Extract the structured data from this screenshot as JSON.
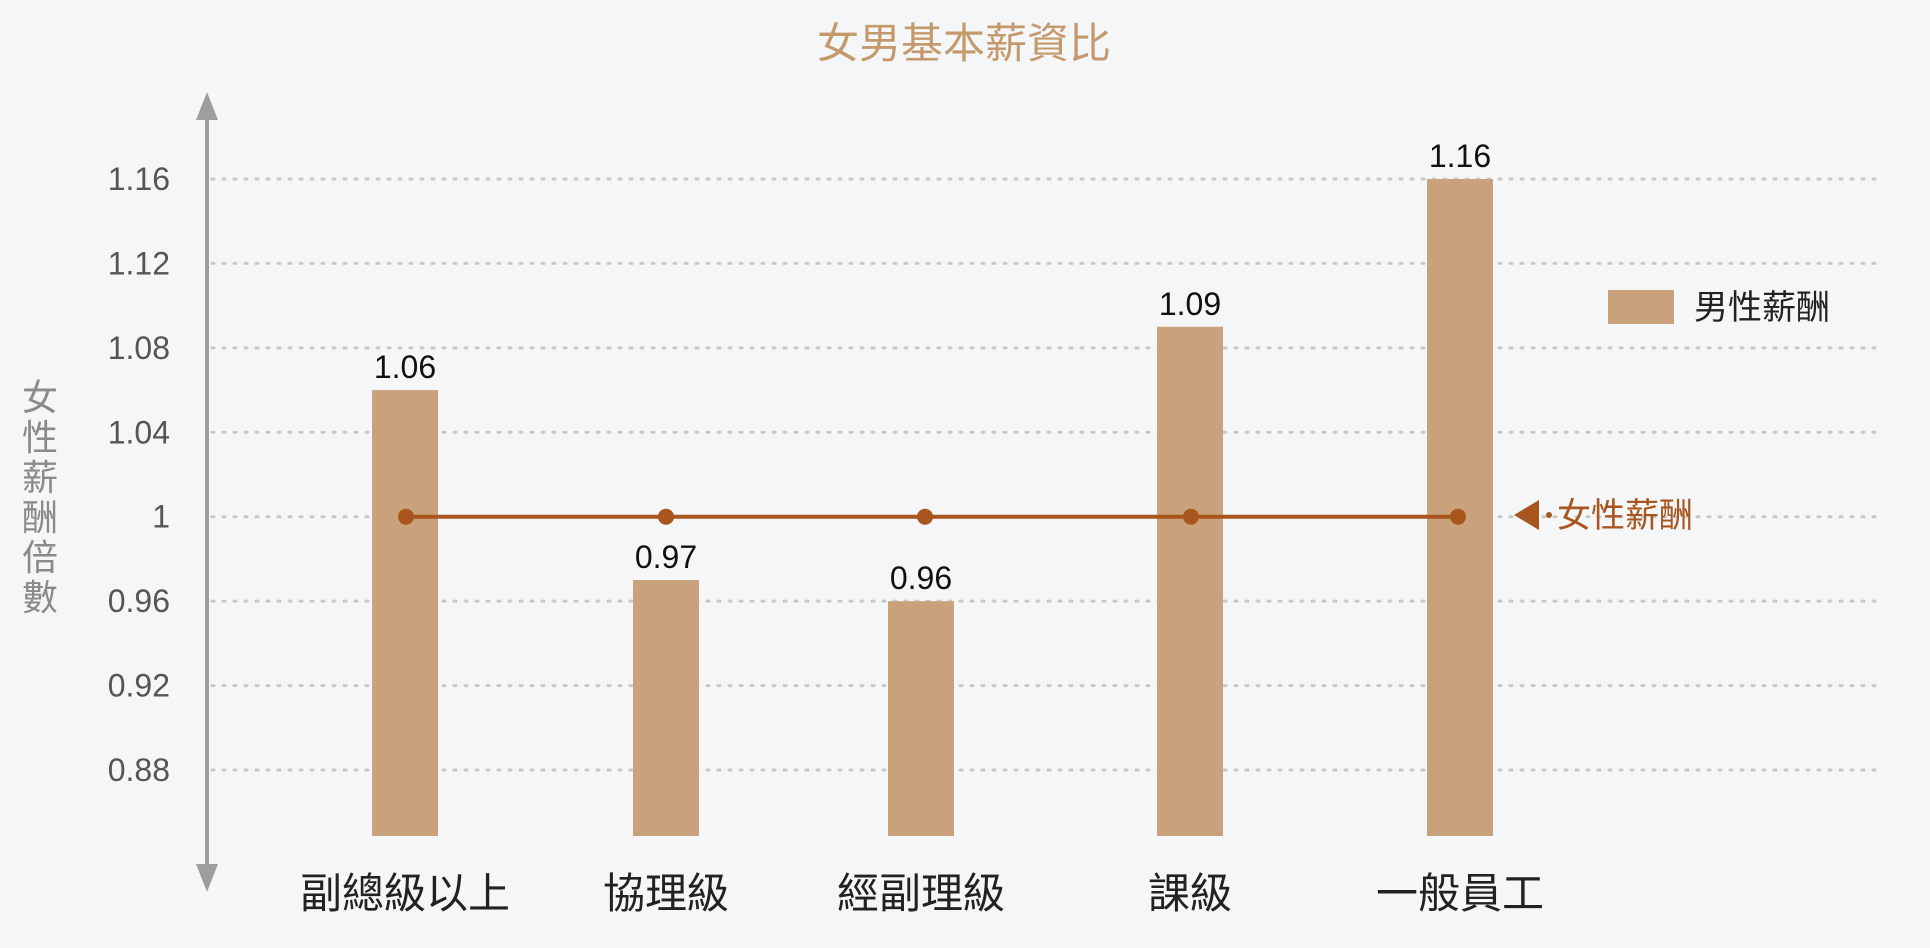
{
  "chart_data": {
    "type": "bar",
    "title": "女男基本薪資比",
    "ylabel": "女性薪酬倍數",
    "xlabel": "",
    "categories": [
      "副總級以上",
      "協理級",
      "經副理級",
      "課級",
      "一般員工"
    ],
    "series": [
      {
        "name": "男性薪酬",
        "type": "bar",
        "values": [
          1.06,
          0.97,
          0.96,
          1.09,
          1.16
        ],
        "color": "#c9a27c"
      },
      {
        "name": "女性薪酬",
        "type": "line",
        "values": [
          1,
          1,
          1,
          1,
          1
        ],
        "color": "#a8561e"
      }
    ],
    "data_labels": [
      "1.06",
      "0.97",
      "0.96",
      "1.09",
      "1.16"
    ],
    "y_ticks": [
      0.88,
      0.92,
      0.96,
      1.0,
      1.04,
      1.08,
      1.12,
      1.16
    ],
    "y_tick_labels": [
      "0.88",
      "0.92",
      "0.96",
      "1",
      "1.04",
      "1.08",
      "1.12",
      "1.16"
    ],
    "ylim": [
      0.85,
      1.19
    ],
    "grid": true,
    "legend_position": "right",
    "colors": {
      "title": "#c49a6c",
      "axis": "#9e9e9e",
      "line": "#a8561e",
      "bar": "#c9a27c"
    }
  }
}
